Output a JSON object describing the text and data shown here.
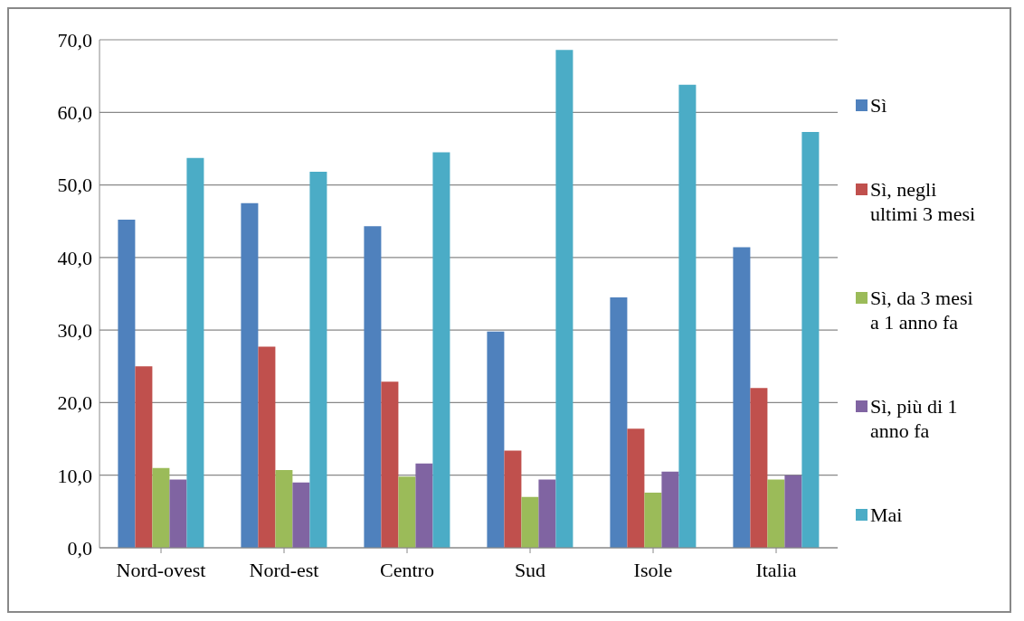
{
  "chart_data": {
    "type": "bar",
    "categories": [
      "Nord-ovest",
      "Nord-est",
      "Centro",
      "Sud",
      "Isole",
      "Italia"
    ],
    "series": [
      {
        "name": "Sì",
        "color": "#4f81bd",
        "values": [
          45.2,
          47.5,
          44.3,
          29.8,
          34.5,
          41.4
        ]
      },
      {
        "name": "Sì, negli ultimi 3 mesi",
        "color": "#c0504d",
        "values": [
          25.0,
          27.7,
          22.9,
          13.4,
          16.4,
          22.0
        ]
      },
      {
        "name": "Sì, da 3 mesi a 1 anno fa",
        "color": "#9bbb59",
        "values": [
          11.0,
          10.7,
          9.8,
          7.0,
          7.6,
          9.4
        ]
      },
      {
        "name": "Sì, più di 1 anno fa",
        "color": "#8064a2",
        "values": [
          9.4,
          9.0,
          11.6,
          9.4,
          10.5,
          10.0
        ]
      },
      {
        "name": "Mai",
        "color": "#4bacc6",
        "values": [
          53.7,
          51.8,
          54.5,
          68.6,
          63.8,
          57.3
        ]
      }
    ],
    "ylim": [
      0,
      70
    ],
    "yticks": [
      {
        "value": 0,
        "label": "0,0"
      },
      {
        "value": 10,
        "label": "10,0"
      },
      {
        "value": 20,
        "label": "20,0"
      },
      {
        "value": 30,
        "label": "30,0"
      },
      {
        "value": 40,
        "label": "40,0"
      },
      {
        "value": 50,
        "label": "50,0"
      },
      {
        "value": 60,
        "label": "60,0"
      },
      {
        "value": 70,
        "label": "70,0"
      }
    ],
    "grid": "y",
    "legend": "right"
  }
}
